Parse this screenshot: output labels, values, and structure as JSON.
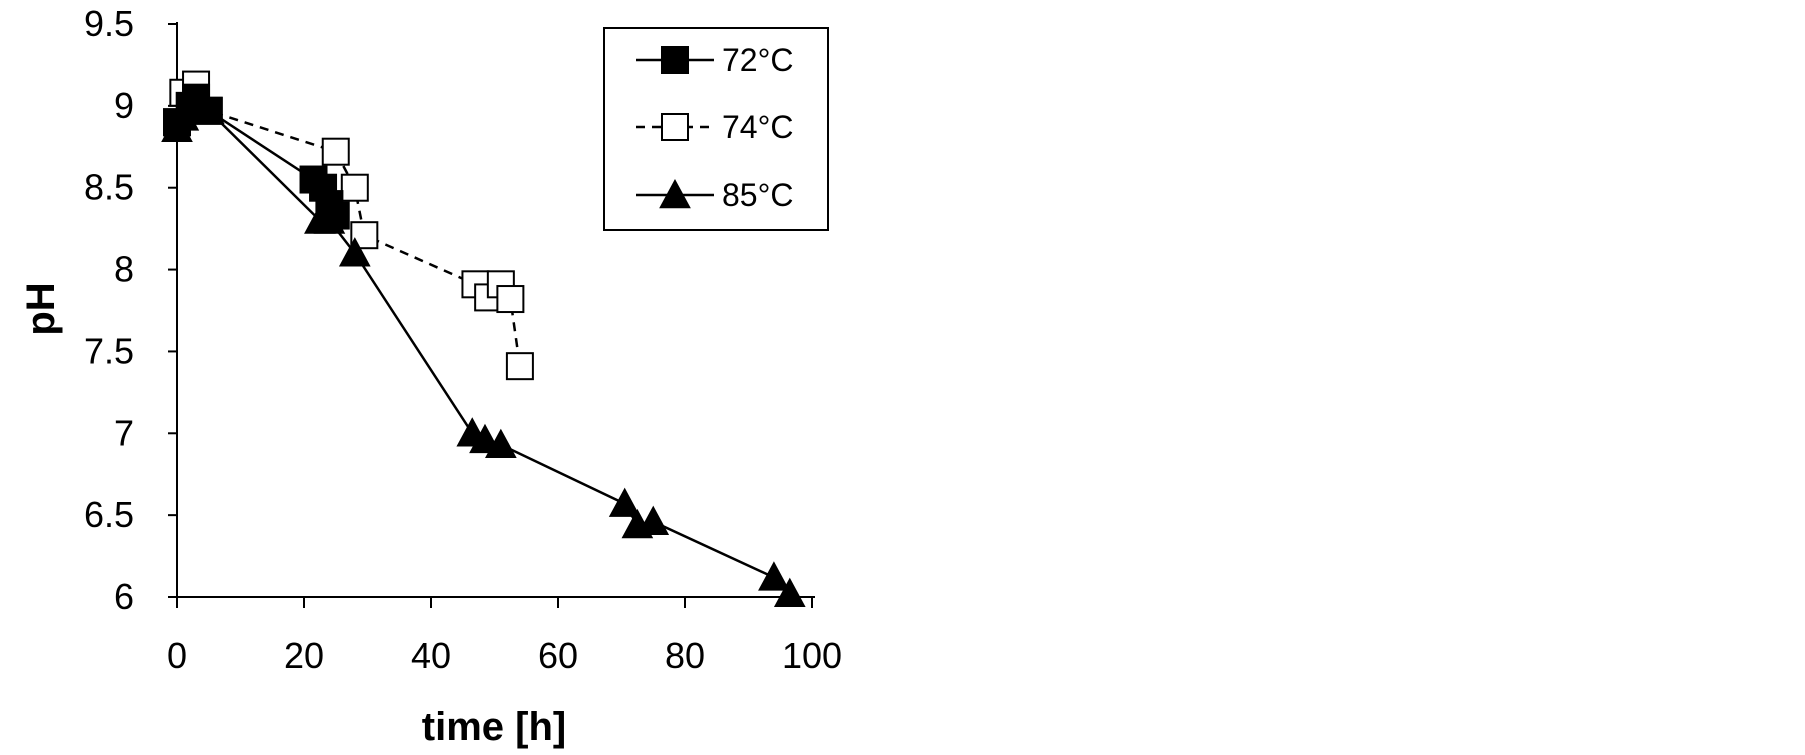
{
  "chart_data": {
    "type": "line",
    "title": "",
    "xlabel": "time [h]",
    "ylabel": "pH",
    "xlim": [
      0,
      100
    ],
    "ylim": [
      6,
      9.5
    ],
    "xticks": [
      "0",
      "20",
      "40",
      "60",
      "80",
      "100"
    ],
    "yticks": [
      "6",
      "6.5",
      "7",
      "7.5",
      "8",
      "8.5",
      "9",
      "9.5"
    ],
    "grid": false,
    "legend_position": "top-right",
    "series": [
      {
        "name": "72°C",
        "marker": "filled-square",
        "line_style": "solid",
        "color": "#000000",
        "x": [
          0,
          2,
          3,
          5,
          21.5,
          23,
          24,
          25
        ],
        "y": [
          8.9,
          9.0,
          9.05,
          8.97,
          8.55,
          8.5,
          8.4,
          8.33
        ]
      },
      {
        "name": "74°C",
        "marker": "open-square",
        "line_style": "dashed",
        "color": "#000000",
        "x": [
          0,
          1,
          3,
          5,
          25,
          28,
          29.5,
          47,
          49,
          51,
          52.5,
          54
        ],
        "y": [
          8.9,
          9.08,
          9.13,
          8.97,
          8.72,
          8.5,
          8.21,
          7.91,
          7.83,
          7.91,
          7.82,
          7.41
        ]
      },
      {
        "name": "85°C",
        "marker": "filled-triangle",
        "line_style": "solid",
        "color": "#000000",
        "x": [
          0,
          1,
          3,
          5,
          22.5,
          24,
          28,
          46.5,
          48.5,
          51,
          70.5,
          72.5,
          75,
          94,
          96.5
        ],
        "y": [
          8.86,
          8.93,
          8.98,
          8.97,
          8.3,
          8.3,
          8.1,
          7.0,
          6.96,
          6.93,
          6.57,
          6.44,
          6.46,
          6.12,
          6.02
        ]
      }
    ]
  }
}
